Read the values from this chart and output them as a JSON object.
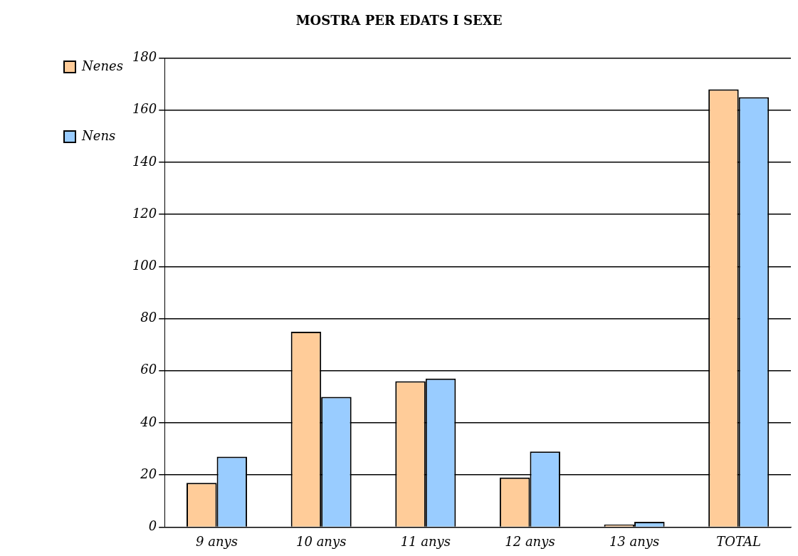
{
  "chart_data": {
    "type": "bar",
    "title": "MOSTRA PER EDATS I SEXE",
    "categories": [
      "9 anys",
      "10 anys",
      "11 anys",
      "12 anys",
      "13 anys",
      "TOTAL"
    ],
    "series": [
      {
        "name": "Nenes",
        "color": "#ffcc99",
        "values": [
          17,
          75,
          56,
          19,
          1,
          168
        ]
      },
      {
        "name": "Nens",
        "color": "#99ccff",
        "values": [
          27,
          50,
          57,
          29,
          2,
          165
        ]
      }
    ],
    "ylim": [
      0,
      180
    ],
    "yticks": [
      0,
      20,
      40,
      60,
      80,
      100,
      120,
      140,
      160,
      180
    ],
    "grid": "y",
    "legend": "top left"
  }
}
